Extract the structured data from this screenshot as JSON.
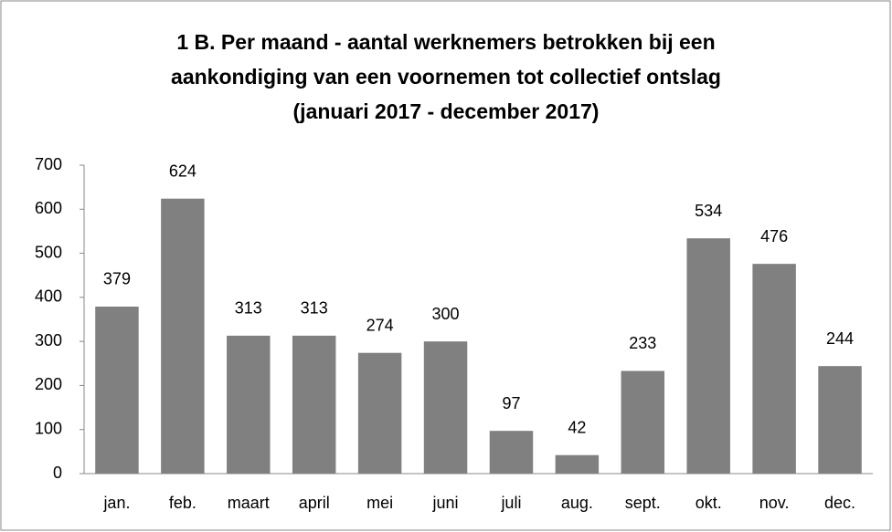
{
  "chart_data": {
    "type": "bar",
    "title": [
      "1 B. Per maand - aantal werknemers betrokken bij een",
      "aankondiging van een voornemen tot collectief ontslag",
      "(januari 2017 - december 2017)"
    ],
    "categories": [
      "jan.",
      "feb.",
      "maart",
      "april",
      "mei",
      "juni",
      "juli",
      "aug.",
      "sept.",
      "okt.",
      "nov.",
      "dec."
    ],
    "values": [
      379,
      624,
      313,
      313,
      274,
      300,
      97,
      42,
      233,
      534,
      476,
      244
    ],
    "color": "#808080",
    "ylim": [
      0,
      700
    ],
    "yticks": [
      0,
      100,
      200,
      300,
      400,
      500,
      600,
      700
    ],
    "grid": false
  }
}
